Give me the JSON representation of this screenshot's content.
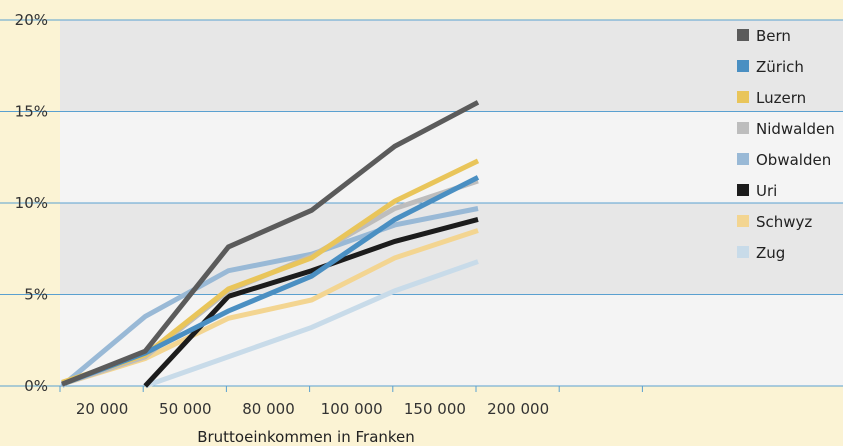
{
  "chart_data": {
    "type": "line",
    "xlabel": "Bruttoeinkommen in Franken",
    "ylabel": "",
    "categories": [
      "20 000",
      "50 000",
      "80 000",
      "100 000",
      "150 000",
      "200 000"
    ],
    "yticks": [
      "0%",
      "5%",
      "10%",
      "15%",
      "20%"
    ],
    "ylim": [
      0,
      20
    ],
    "grid": "horizontal",
    "legend_position": "right",
    "background_bands": [
      "#e7e7e7",
      "#f4f4f4"
    ],
    "series": [
      {
        "name": "Bern",
        "color": "#5b5b5b",
        "values": [
          0.1,
          1.9,
          7.6,
          9.6,
          13.1,
          15.5
        ]
      },
      {
        "name": "Zürich",
        "color": "#4a8fc2",
        "values": [
          0.1,
          1.8,
          4.1,
          6.0,
          9.1,
          11.4
        ]
      },
      {
        "name": "Luzern",
        "color": "#e9c55a",
        "values": [
          0.2,
          1.7,
          5.3,
          7.0,
          10.1,
          12.3
        ]
      },
      {
        "name": "Nidwalden",
        "color": "#bdbdbd",
        "values": [
          0.1,
          1.6,
          5.2,
          7.1,
          9.7,
          11.2
        ]
      },
      {
        "name": "Obwalden",
        "color": "#99b9d6",
        "values": [
          0.0,
          3.8,
          6.3,
          7.2,
          8.8,
          9.7
        ]
      },
      {
        "name": "Uri",
        "color": "#1c1c1c",
        "values": [
          null,
          0.0,
          4.9,
          6.3,
          7.9,
          9.1
        ]
      },
      {
        "name": "Schwyz",
        "color": "#f3d591",
        "values": [
          0.1,
          1.5,
          3.7,
          4.7,
          7.0,
          8.5
        ]
      },
      {
        "name": "Zug",
        "color": "#c8dbe9",
        "values": [
          null,
          0.0,
          1.6,
          3.2,
          5.2,
          6.8
        ]
      }
    ]
  }
}
